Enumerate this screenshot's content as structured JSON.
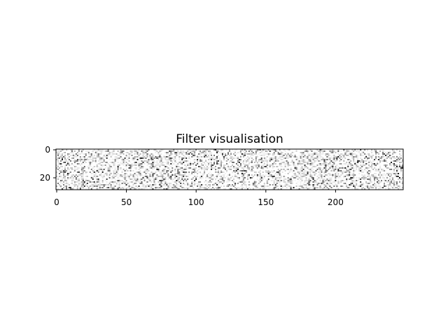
{
  "chart_data": {
    "type": "heatmap",
    "title": "Filter visualisation",
    "xlabel": "",
    "ylabel": "",
    "colormap": "gray_r",
    "x_ticks": [
      0,
      50,
      100,
      150,
      200
    ],
    "y_ticks": [
      0,
      20
    ],
    "xlim": [
      -0.5,
      248.5
    ],
    "ylim": [
      28.5,
      -0.5
    ],
    "grid": false,
    "legend": "none",
    "n_columns": 249,
    "n_rows": 29
  }
}
